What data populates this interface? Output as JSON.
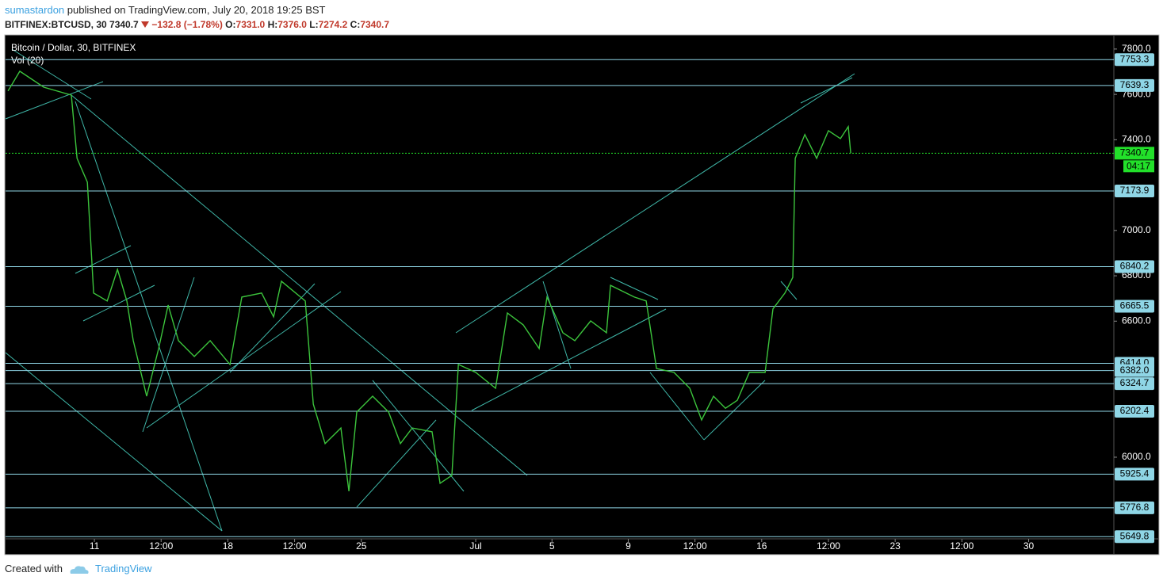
{
  "header": {
    "author": "sumastardon",
    "published": "published on TradingView.com, July 20, 2018 19:25 BST",
    "symbol": "BITFINEX:BTCUSD, 30",
    "last": "7340.7",
    "change": "−132.8 (−1.78%)",
    "ohlc": [
      {
        "key": "O:",
        "value": "7331.0"
      },
      {
        "key": "H:",
        "value": "7376.0"
      },
      {
        "key": "L:",
        "value": "7274.2"
      },
      {
        "key": "C:",
        "value": "7340.7"
      }
    ]
  },
  "footer": {
    "created": "Created with",
    "brand": "TradingView"
  },
  "chart_data": {
    "type": "line",
    "title": "Bitcoin / Dollar, 30, BITFINEX",
    "indicator": "Vol (20)",
    "xlim": [
      6.34,
      64.47
    ],
    "ylim": [
      5640,
      7859
    ],
    "xticks": [
      11,
      {
        "value": 14.5,
        "label": "12:00"
      },
      18,
      {
        "value": 21.5,
        "label": "12:00"
      },
      25,
      {
        "value": 31,
        "label": "Jul"
      },
      {
        "value": 35,
        "label": "5"
      },
      {
        "value": 39,
        "label": "9"
      },
      {
        "value": 42.5,
        "label": "12:00"
      },
      {
        "value": 46,
        "label": "16"
      },
      {
        "value": 49.5,
        "label": "12:00"
      },
      {
        "value": 53,
        "label": "23"
      },
      {
        "value": 56.5,
        "label": "12:00"
      },
      {
        "value": 60,
        "label": "30"
      }
    ],
    "yticks": [
      {
        "value": 7800,
        "label": "7800.0"
      },
      {
        "value": 7600,
        "label": "7600.0"
      },
      {
        "value": 7400,
        "label": "7400.0"
      },
      {
        "value": 7000,
        "label": "7000.0"
      },
      {
        "value": 6800,
        "label": "6800.0"
      },
      {
        "value": 6600,
        "label": "6600.0"
      },
      {
        "value": 6000,
        "label": "6000.0"
      }
    ],
    "levels": [
      7753.3,
      7639.3,
      7173.9,
      {
        "value": 6840.2,
        "label": "6840.2"
      },
      6665.5,
      {
        "value": 6414,
        "label": "6414.0"
      },
      {
        "value": 6382,
        "label": "6382.0"
      },
      6324.7,
      6202.4,
      5925.4,
      5776.8,
      5649.8
    ],
    "level_color": "#8fd6e6",
    "last_price": 7340.7,
    "countdown": "04:17",
    "last_color": "#22e02a",
    "series": [
      {
        "name": "Bitcoin / Dollar, 30, BITFINEX",
        "color": "#3cc43c",
        "x": [
          6.47,
          7.09,
          8.34,
          9.79,
          10.09,
          10.63,
          10.96,
          11.67,
          12.21,
          12.7,
          13.04,
          13.74,
          14.37,
          14.87,
          15.41,
          16.24,
          17.07,
          18.11,
          18.73,
          19.77,
          20.4,
          20.81,
          22.06,
          22.48,
          23.1,
          23.93,
          24.35,
          24.76,
          25.59,
          26.43,
          27.05,
          27.67,
          28.71,
          29.13,
          29.75,
          30.09,
          31.0,
          32.04,
          32.66,
          33.49,
          34.33,
          34.74,
          35.57,
          36.2,
          37.03,
          37.86,
          38.07,
          39.32,
          39.94,
          40.48,
          41.4,
          42.23,
          42.85,
          43.47,
          44.1,
          44.72,
          45.35,
          46.18,
          46.59,
          47.22,
          47.63,
          47.76,
          48.26,
          48.88,
          49.5,
          50.13,
          50.54,
          50.67
        ],
        "values": [
          7615,
          7702,
          7632,
          7597,
          7318,
          7213,
          6724,
          6689,
          6828,
          6689,
          6514,
          6269,
          6479,
          6671,
          6514,
          6444,
          6514,
          6409,
          6706,
          6724,
          6619,
          6776,
          6689,
          6234,
          6060,
          6129,
          5850,
          6199,
          6269,
          6199,
          6060,
          6129,
          6112,
          5885,
          5920,
          6409,
          6374,
          6304,
          6636,
          6584,
          6479,
          6706,
          6549,
          6514,
          6601,
          6549,
          6758,
          6706,
          6689,
          6391,
          6374,
          6304,
          6164,
          6269,
          6216,
          6251,
          6374,
          6374,
          6654,
          6724,
          6793,
          7318,
          7423,
          7318,
          7440,
          7405,
          7458,
          7340.7
        ]
      }
    ]
  }
}
